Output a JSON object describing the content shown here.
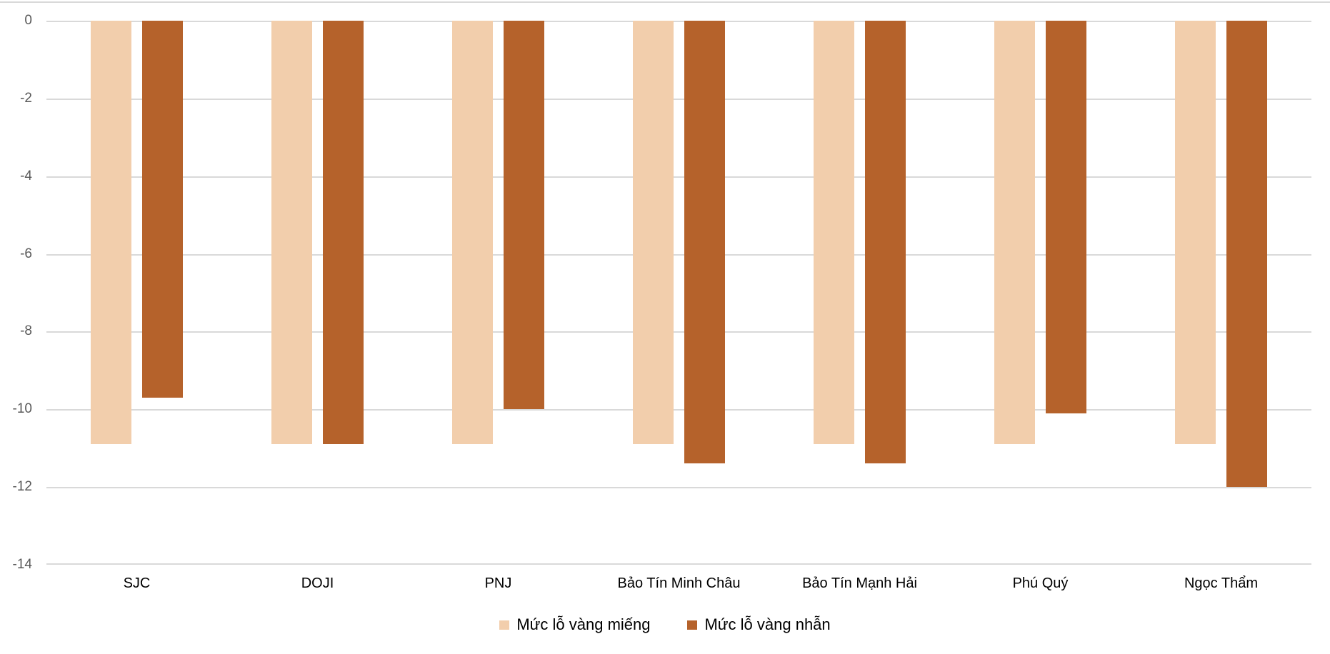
{
  "chart_data": {
    "type": "bar",
    "orientation": "vertical",
    "title": "",
    "xlabel": "",
    "ylabel": "",
    "categories": [
      "SJC",
      "DOJI",
      "PNJ",
      "Bảo Tín Minh Châu",
      "Bảo Tín Mạnh Hải",
      "Phú Quý",
      "Ngọc Thẩm"
    ],
    "series": [
      {
        "name": "Mức lỗ vàng miếng",
        "color": "#F2CEAC",
        "values": [
          -10.9,
          -10.9,
          -10.9,
          -10.9,
          -10.9,
          -10.9,
          -10.9
        ]
      },
      {
        "name": "Mức lỗ vàng nhẫn",
        "color": "#B5622B",
        "values": [
          -9.7,
          -10.9,
          -10.0,
          -11.4,
          -11.4,
          -10.1,
          -12.0
        ]
      }
    ],
    "ylim": [
      -14,
      0
    ],
    "y_ticks": [
      0,
      -2,
      -4,
      -6,
      -8,
      -10,
      -12,
      -14
    ],
    "grid": true,
    "legend_position": "bottom",
    "colors": {
      "gridline": "#D9D9D9",
      "axis_tick_label": "#595959",
      "category_label": "#000000",
      "legend_label": "#000000",
      "background": "#FFFFFF"
    }
  }
}
